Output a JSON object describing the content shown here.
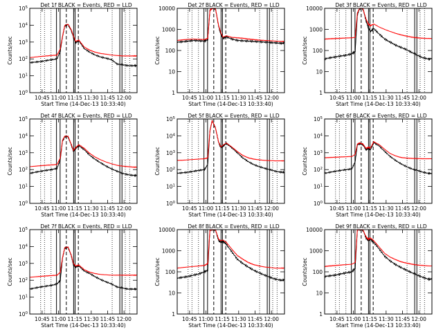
{
  "common": {
    "ylabel": "Counts/sec",
    "xlabel": "Start Time (14-Dec-13 10:33:40)",
    "title_suffix": "BLACK = Events, RED = LLD",
    "x_ticks": [
      "10:45",
      "11:00",
      "11:15",
      "11:30",
      "11:45",
      "12:00"
    ],
    "xlim": [
      "10:33:40",
      "12:12:00"
    ],
    "x_tick_minutes": [
      11.33,
      26.33,
      41.33,
      56.33,
      71.33,
      86.33
    ],
    "x_range_minutes": [
      0,
      98.3
    ],
    "grid": false,
    "colors": {
      "events": "#000000",
      "lld": "#ff0000",
      "axes": "#000000"
    },
    "dashed_markers_minutes": [
      33.5,
      44.5
    ]
  },
  "chart_data": [
    {
      "type": "line",
      "title": "Det 1f BLACK = Events, RED = LLD",
      "ylog": true,
      "ylim": [
        1,
        100000
      ],
      "y_ticks": [
        "10^0",
        "10^1",
        "10^2",
        "10^3",
        "10^4",
        "10^5"
      ],
      "y_tick_values": [
        1,
        10,
        100,
        1000,
        10000,
        100000
      ],
      "x": [
        0,
        5,
        10,
        15,
        20,
        25,
        28,
        30,
        32,
        35,
        38,
        40,
        42,
        45,
        50,
        55,
        60,
        65,
        70,
        75,
        80,
        85,
        90,
        95,
        98
      ],
      "series": [
        {
          "name": "Events",
          "values": [
            60,
            65,
            70,
            80,
            90,
            100,
            300,
            2000,
            9000,
            11000,
            5000,
            2000,
            900,
            1200,
            400,
            250,
            170,
            130,
            110,
            90,
            50,
            45,
            40,
            40,
            40
          ]
        },
        {
          "name": "LLD",
          "values": [
            120,
            130,
            140,
            150,
            160,
            170,
            400,
            2200,
            9500,
            11500,
            5500,
            2300,
            1100,
            1300,
            500,
            330,
            250,
            210,
            190,
            170,
            160,
            150,
            150,
            150,
            150
          ]
        }
      ]
    },
    {
      "type": "line",
      "title": "Det 2f BLACK = Events, RED = LLD",
      "ylog": true,
      "ylim": [
        1,
        10000
      ],
      "y_ticks": [
        "1",
        "10",
        "100",
        "1000",
        "10000"
      ],
      "y_tick_values": [
        1,
        10,
        100,
        1000,
        10000
      ],
      "x": [
        0,
        5,
        10,
        15,
        20,
        25,
        28,
        30,
        32,
        35,
        38,
        40,
        42,
        45,
        50,
        55,
        60,
        65,
        70,
        75,
        80,
        85,
        90,
        95,
        98
      ],
      "series": [
        {
          "name": "Events",
          "values": [
            250,
            260,
            280,
            300,
            290,
            280,
            330,
            8000,
            10000,
            10000,
            1400,
            600,
            380,
            450,
            350,
            300,
            290,
            280,
            270,
            260,
            250,
            240,
            230,
            220,
            220
          ]
        },
        {
          "name": "LLD",
          "values": [
            300,
            320,
            340,
            350,
            340,
            330,
            380,
            8000,
            10000,
            10000,
            1500,
            700,
            430,
            500,
            420,
            400,
            380,
            350,
            330,
            310,
            300,
            290,
            280,
            270,
            270
          ]
        }
      ]
    },
    {
      "type": "line",
      "title": "Det 3f BLACK = Events, RED = LLD",
      "ylog": true,
      "ylim": [
        1,
        10000
      ],
      "y_ticks": [
        "1",
        "10",
        "100",
        "1000",
        "10000"
      ],
      "y_tick_values": [
        1,
        10,
        100,
        1000,
        10000
      ],
      "x": [
        0,
        5,
        10,
        15,
        20,
        25,
        28,
        30,
        32,
        35,
        38,
        40,
        42,
        45,
        50,
        55,
        60,
        65,
        70,
        75,
        80,
        85,
        90,
        95,
        98
      ],
      "series": [
        {
          "name": "Events",
          "values": [
            40,
            45,
            50,
            55,
            60,
            70,
            90,
            5000,
            10000,
            10000,
            2500,
            1200,
            800,
            1100,
            600,
            350,
            250,
            180,
            140,
            110,
            80,
            60,
            45,
            40,
            40
          ]
        },
        {
          "name": "LLD",
          "values": [
            350,
            360,
            370,
            380,
            390,
            400,
            420,
            6000,
            10000,
            10000,
            3000,
            1800,
            1500,
            1800,
            1300,
            1000,
            800,
            650,
            550,
            480,
            430,
            400,
            380,
            370,
            370
          ]
        }
      ]
    },
    {
      "type": "line",
      "title": "Det 4f BLACK = Events, RED = LLD",
      "ylog": true,
      "ylim": [
        1,
        100000
      ],
      "y_ticks": [
        "10^0",
        "10^1",
        "10^2",
        "10^3",
        "10^4",
        "10^5"
      ],
      "y_tick_values": [
        1,
        10,
        100,
        1000,
        10000,
        100000
      ],
      "x": [
        0,
        5,
        10,
        15,
        20,
        25,
        28,
        30,
        32,
        35,
        38,
        40,
        42,
        45,
        50,
        55,
        60,
        65,
        70,
        75,
        80,
        85,
        90,
        95,
        98
      ],
      "series": [
        {
          "name": "Events",
          "values": [
            60,
            70,
            80,
            90,
            100,
            120,
            400,
            5000,
            9000,
            9000,
            3000,
            1200,
            1800,
            2600,
            1500,
            700,
            400,
            250,
            160,
            110,
            80,
            60,
            50,
            45,
            45
          ]
        },
        {
          "name": "LLD",
          "values": [
            150,
            160,
            170,
            180,
            190,
            200,
            500,
            5500,
            9500,
            9500,
            3200,
            1400,
            2000,
            3000,
            1800,
            900,
            550,
            380,
            280,
            220,
            180,
            160,
            150,
            140,
            140
          ]
        }
      ]
    },
    {
      "type": "line",
      "title": "Det 5f BLACK = Events, RED = LLD",
      "ylog": true,
      "ylim": [
        1,
        100000
      ],
      "y_ticks": [
        "10^0",
        "10^1",
        "10^2",
        "10^3",
        "10^4",
        "10^5"
      ],
      "y_tick_values": [
        1,
        10,
        100,
        1000,
        10000,
        100000
      ],
      "x": [
        0,
        5,
        10,
        15,
        20,
        25,
        28,
        30,
        32,
        35,
        38,
        40,
        42,
        45,
        50,
        55,
        60,
        65,
        70,
        75,
        80,
        85,
        90,
        95,
        98
      ],
      "series": [
        {
          "name": "Events",
          "values": [
            60,
            65,
            70,
            80,
            90,
            100,
            200,
            20000,
            80000,
            30000,
            4000,
            2000,
            2500,
            3500,
            2000,
            1000,
            500,
            300,
            200,
            150,
            120,
            100,
            80,
            70,
            70
          ]
        },
        {
          "name": "LLD",
          "values": [
            350,
            360,
            380,
            400,
            420,
            440,
            500,
            20000,
            80000,
            30000,
            4200,
            2200,
            2800,
            3800,
            2200,
            1200,
            700,
            500,
            420,
            380,
            350,
            340,
            330,
            330,
            330
          ]
        }
      ]
    },
    {
      "type": "line",
      "title": "Det 6f BLACK = Events, RED = LLD",
      "ylog": true,
      "ylim": [
        1,
        100000
      ],
      "y_ticks": [
        "10^0",
        "10^1",
        "10^2",
        "10^3",
        "10^4",
        "10^5"
      ],
      "y_tick_values": [
        1,
        10,
        100,
        1000,
        10000,
        100000
      ],
      "x": [
        0,
        5,
        10,
        15,
        20,
        25,
        28,
        30,
        32,
        35,
        38,
        40,
        42,
        45,
        50,
        55,
        60,
        65,
        70,
        75,
        80,
        85,
        90,
        95,
        98
      ],
      "series": [
        {
          "name": "Events",
          "values": [
            60,
            70,
            80,
            90,
            100,
            110,
            300,
            3000,
            3500,
            3000,
            1500,
            1800,
            1500,
            4000,
            2500,
            1200,
            600,
            350,
            220,
            150,
            110,
            90,
            70,
            60,
            60
          ]
        },
        {
          "name": "LLD",
          "values": [
            500,
            520,
            540,
            560,
            580,
            600,
            800,
            3200,
            3800,
            3300,
            1800,
            2100,
            1900,
            4500,
            3000,
            1600,
            900,
            650,
            520,
            480,
            460,
            450,
            440,
            440,
            440
          ]
        }
      ]
    },
    {
      "type": "line",
      "title": "Det 7f BLACK = Events, RED = LLD",
      "ylog": true,
      "ylim": [
        1,
        100000
      ],
      "y_ticks": [
        "10^0",
        "10^1",
        "10^2",
        "10^3",
        "10^4",
        "10^5"
      ],
      "y_tick_values": [
        1,
        10,
        100,
        1000,
        10000,
        100000
      ],
      "x": [
        0,
        5,
        10,
        15,
        20,
        25,
        28,
        30,
        32,
        35,
        38,
        40,
        42,
        45,
        50,
        55,
        60,
        65,
        70,
        75,
        80,
        85,
        90,
        95,
        98
      ],
      "series": [
        {
          "name": "Events",
          "values": [
            30,
            35,
            40,
            45,
            50,
            60,
            100,
            2000,
            8000,
            9000,
            3000,
            800,
            600,
            700,
            350,
            250,
            160,
            110,
            80,
            60,
            40,
            35,
            30,
            30,
            30
          ]
        },
        {
          "name": "LLD",
          "values": [
            150,
            160,
            170,
            180,
            190,
            200,
            300,
            2200,
            8500,
            9500,
            3200,
            1000,
            700,
            800,
            420,
            300,
            250,
            220,
            210,
            200,
            200,
            200,
            200,
            200,
            200
          ]
        }
      ]
    },
    {
      "type": "line",
      "title": "Det 8f BLACK = Events, RED = LLD",
      "ylog": true,
      "ylim": [
        1,
        10000
      ],
      "y_ticks": [
        "1",
        "10",
        "100",
        "1000",
        "10000"
      ],
      "y_tick_values": [
        1,
        10,
        100,
        1000,
        10000
      ],
      "x": [
        0,
        5,
        10,
        15,
        20,
        25,
        28,
        30,
        32,
        35,
        38,
        40,
        42,
        45,
        50,
        55,
        60,
        65,
        70,
        75,
        80,
        85,
        90,
        95,
        98
      ],
      "series": [
        {
          "name": "Events",
          "values": [
            50,
            55,
            60,
            70,
            80,
            100,
            120,
            10000,
            10000,
            10000,
            3000,
            2500,
            2800,
            2000,
            900,
            400,
            250,
            170,
            120,
            90,
            70,
            55,
            45,
            40,
            40
          ]
        },
        {
          "name": "LLD",
          "values": [
            150,
            160,
            170,
            180,
            190,
            200,
            250,
            10000,
            10000,
            10000,
            3500,
            3000,
            3200,
            2500,
            1200,
            600,
            400,
            280,
            220,
            190,
            170,
            160,
            150,
            150,
            150
          ]
        }
      ]
    },
    {
      "type": "line",
      "title": "Det 9f BLACK = Events, RED = LLD",
      "ylog": true,
      "ylim": [
        1,
        10000
      ],
      "y_ticks": [
        "1",
        "10",
        "100",
        "1000",
        "10000"
      ],
      "y_tick_values": [
        1,
        10,
        100,
        1000,
        10000
      ],
      "x": [
        0,
        5,
        10,
        15,
        20,
        25,
        28,
        30,
        32,
        35,
        38,
        40,
        42,
        45,
        50,
        55,
        60,
        65,
        70,
        75,
        80,
        85,
        90,
        95,
        98
      ],
      "series": [
        {
          "name": "Events",
          "values": [
            60,
            65,
            70,
            80,
            90,
            100,
            150,
            10000,
            10000,
            10000,
            4000,
            3000,
            3500,
            2500,
            1200,
            550,
            330,
            220,
            160,
            120,
            90,
            70,
            55,
            45,
            45
          ]
        },
        {
          "name": "LLD",
          "values": [
            180,
            190,
            200,
            210,
            220,
            230,
            280,
            10000,
            10000,
            10000,
            4500,
            3500,
            4000,
            3000,
            1500,
            750,
            500,
            380,
            300,
            260,
            230,
            210,
            200,
            190,
            190
          ]
        }
      ]
    }
  ]
}
